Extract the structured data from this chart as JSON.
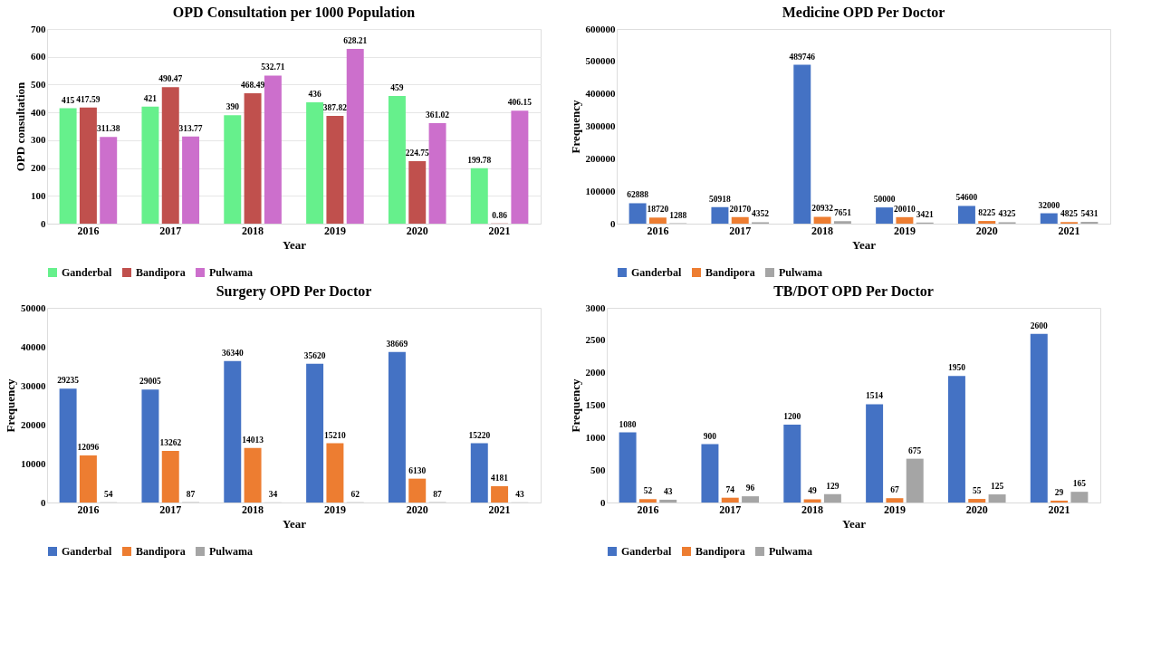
{
  "chart_data": [
    {
      "type": "bar",
      "title": "OPD Consultation per 1000 Population",
      "xlabel": "Year",
      "ylabel": "OPD consultation",
      "categories": [
        "2016",
        "2017",
        "2018",
        "2019",
        "2020",
        "2021"
      ],
      "series": [
        {
          "name": "Ganderbal",
          "color": "#66f08c",
          "values": [
            415,
            421,
            390,
            436,
            459,
            199.78
          ]
        },
        {
          "name": "Bandipora",
          "color": "#c0504d",
          "values": [
            417.59,
            490.47,
            468.49,
            387.82,
            224.75,
            0.86
          ]
        },
        {
          "name": "Pulwama",
          "color": "#cc6fcc",
          "values": [
            311.38,
            313.77,
            532.71,
            628.21,
            361.02,
            406.15
          ]
        }
      ],
      "ylim": [
        0,
        700
      ],
      "yticks": [
        0,
        100,
        200,
        300,
        400,
        500,
        600,
        700
      ],
      "grid": "y",
      "legend": "bottom",
      "data_labels": true
    },
    {
      "type": "bar",
      "title": "Medicine OPD Per Doctor",
      "xlabel": "Year",
      "ylabel": "Frequency",
      "categories": [
        "2016",
        "2017",
        "2018",
        "2019",
        "2020",
        "2021"
      ],
      "series": [
        {
          "name": "Ganderbal",
          "color": "#4472c4",
          "values": [
            62888,
            50918,
            489746,
            50000,
            54600,
            32000
          ]
        },
        {
          "name": "Bandipora",
          "color": "#ed7d31",
          "values": [
            18720,
            20170,
            20932,
            20010,
            8225,
            4825
          ]
        },
        {
          "name": "Pulwama",
          "color": "#a5a5a5",
          "values": [
            1288,
            4352,
            7651,
            3421,
            4325,
            5431
          ]
        }
      ],
      "ylim": [
        0,
        600000
      ],
      "yticks": [
        0,
        100000,
        200000,
        300000,
        400000,
        500000,
        600000
      ],
      "grid": false,
      "legend": "bottom",
      "data_labels": true
    },
    {
      "type": "bar",
      "title": "Surgery OPD Per Doctor",
      "xlabel": "Year",
      "ylabel": "Frequency",
      "categories": [
        "2016",
        "2017",
        "2018",
        "2019",
        "2020",
        "2021"
      ],
      "series": [
        {
          "name": "Ganderbal",
          "color": "#4472c4",
          "values": [
            29235,
            29005,
            36340,
            35620,
            38669,
            15220
          ]
        },
        {
          "name": "Bandipora",
          "color": "#ed7d31",
          "values": [
            12096,
            13262,
            14013,
            15210,
            6130,
            4181
          ]
        },
        {
          "name": "Pulwama",
          "color": "#a5a5a5",
          "values": [
            54,
            87,
            34,
            62,
            87,
            43
          ]
        }
      ],
      "ylim": [
        0,
        50000
      ],
      "yticks": [
        0,
        10000,
        20000,
        30000,
        40000,
        50000
      ],
      "grid": false,
      "legend": "bottom",
      "data_labels": true
    },
    {
      "type": "bar",
      "title": "TB/DOT OPD Per Doctor",
      "xlabel": "Year",
      "ylabel": "Frequency",
      "categories": [
        "2016",
        "2017",
        "2018",
        "2019",
        "2020",
        "2021"
      ],
      "series": [
        {
          "name": "Ganderbal",
          "color": "#4472c4",
          "values": [
            1080,
            900,
            1200,
            1514,
            1950,
            2600
          ]
        },
        {
          "name": "Bandipora",
          "color": "#ed7d31",
          "values": [
            52,
            74,
            49,
            67,
            55,
            29
          ]
        },
        {
          "name": "Pulwama",
          "color": "#a5a5a5",
          "values": [
            43,
            96,
            129,
            675,
            125,
            165
          ]
        }
      ],
      "ylim": [
        0,
        3000
      ],
      "yticks": [
        0,
        500,
        1000,
        1500,
        2000,
        2500,
        3000
      ],
      "grid": false,
      "legend": "bottom",
      "data_labels": true
    }
  ]
}
